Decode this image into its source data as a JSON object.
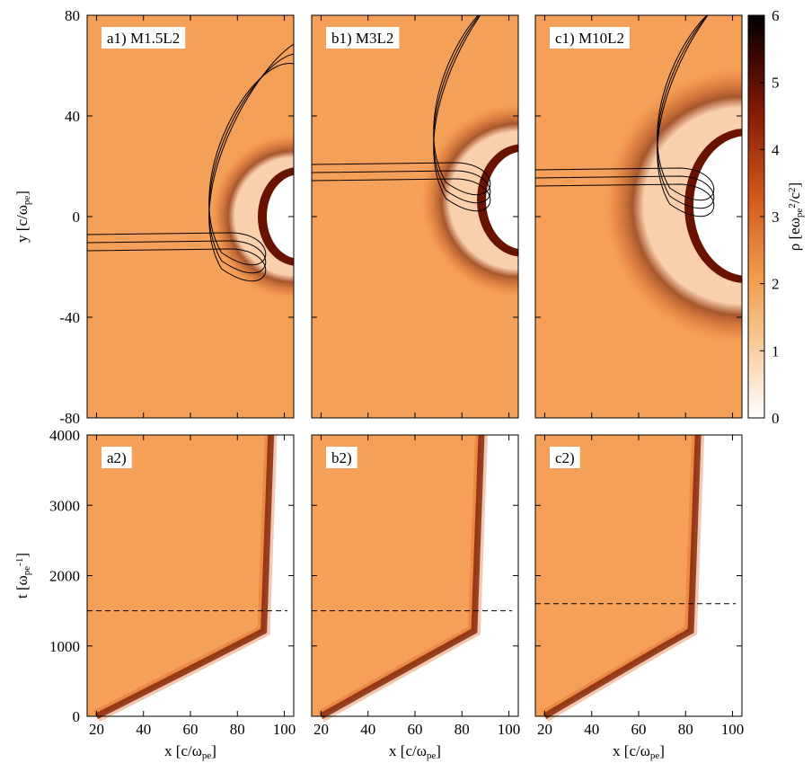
{
  "chart_data": {
    "type": "heatmap",
    "xlim": [
      16,
      104
    ],
    "xticks": [
      20,
      40,
      60,
      80,
      100
    ],
    "xlabel": [
      {
        "text": "x [c/ω"
      },
      {
        "text": "pe",
        "script": "sub"
      },
      {
        "text": "]"
      }
    ],
    "top_row": {
      "ylim": [
        -80,
        80
      ],
      "yticks": [
        -80,
        -40,
        0,
        40,
        80
      ],
      "ylabel": [
        {
          "text": "y [c/ω"
        },
        {
          "text": "pe",
          "script": "sub"
        },
        {
          "text": "]"
        }
      ]
    },
    "bottom_row": {
      "ylim": [
        0,
        4000
      ],
      "yticks": [
        0,
        1000,
        2000,
        3000,
        4000
      ],
      "ylabel": [
        {
          "text": "t [ω"
        },
        {
          "text": "pe",
          "script": "sub"
        },
        {
          "text": "-1",
          "script": "sup"
        },
        {
          "text": "]"
        }
      ]
    },
    "panels": [
      {
        "top_label": "a1) M1.5L2",
        "bottom_label": "a2)",
        "t_line": 1500
      },
      {
        "top_label": "b1) M3L2",
        "bottom_label": "b2)",
        "t_line": 1500
      },
      {
        "top_label": "c1) M10L2",
        "bottom_label": "c2)",
        "t_line": 1600
      }
    ],
    "colorbar": {
      "lim": [
        0,
        6
      ],
      "ticks": [
        0,
        1,
        2,
        3,
        4,
        5,
        6
      ],
      "label": [
        {
          "text": "ρ [eω"
        },
        {
          "text": "pe",
          "script": "sub"
        },
        {
          "text": "2",
          "script": "sup"
        },
        {
          "text": "/c"
        },
        {
          "text": "2",
          "script": "sup"
        },
        {
          "text": "]"
        }
      ]
    }
  }
}
